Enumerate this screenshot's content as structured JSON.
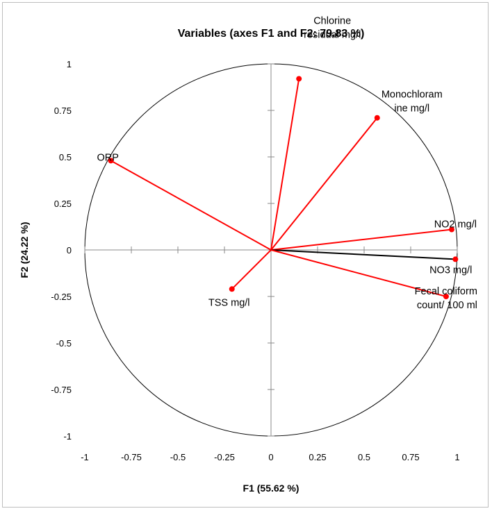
{
  "chart_data": {
    "type": "scatter",
    "subtype": "correlation-circle",
    "title": "Variables (axes F1 and F2: 79.83 %)",
    "xlabel": "F1 (55.62 %)",
    "ylabel": "F2 (24.22 %)",
    "xlim": [
      -1,
      1
    ],
    "ylim": [
      -1,
      1
    ],
    "x_ticks": [
      "-1",
      "-0.75",
      "-0.5",
      "-0.25",
      "0",
      "0.25",
      "0.5",
      "0.75",
      "1"
    ],
    "y_ticks": [
      "1",
      "0.75",
      "0.5",
      "0.25",
      "0",
      "-0.25",
      "-0.5",
      "-0.75",
      "-1"
    ],
    "grid": false,
    "colors": {
      "vector": "#ff0000",
      "highlight_vector": "#000000",
      "circle": "#000000",
      "point": "#ff0000"
    },
    "variables": [
      {
        "label_lines": [
          "Chlorine",
          "residual mg/l"
        ],
        "x": 0.15,
        "y": 0.92,
        "color": "#ff0000"
      },
      {
        "label_lines": [
          "Monochloram",
          "ine mg/l"
        ],
        "x": 0.57,
        "y": 0.71,
        "color": "#ff0000"
      },
      {
        "label_lines": [
          "ORP"
        ],
        "x": -0.86,
        "y": 0.48,
        "color": "#ff0000"
      },
      {
        "label_lines": [
          "NO2 mg/l"
        ],
        "x": 0.97,
        "y": 0.11,
        "color": "#ff0000"
      },
      {
        "label_lines": [
          "NO3 mg/l"
        ],
        "x": 0.99,
        "y": -0.05,
        "color": "#000000"
      },
      {
        "label_lines": [
          "Fecal coliform",
          "count/ 100 ml"
        ],
        "x": 0.94,
        "y": -0.25,
        "color": "#ff0000"
      },
      {
        "label_lines": [
          "TSS mg/l"
        ],
        "x": -0.21,
        "y": -0.21,
        "color": "#ff0000"
      }
    ]
  }
}
